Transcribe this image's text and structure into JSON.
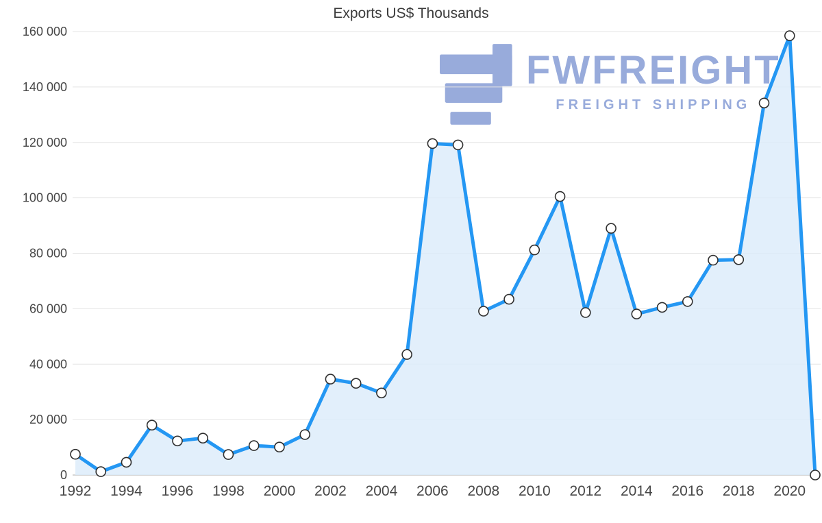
{
  "page": {
    "background": "#ffffff"
  },
  "chart_data": {
    "type": "area",
    "title": "Exports US$ Thousands",
    "series_name": "Exports US$ Thousands",
    "x": [
      1992,
      1993,
      1994,
      1995,
      1996,
      1997,
      1998,
      1999,
      2000,
      2001,
      2002,
      2003,
      2004,
      2005,
      2006,
      2007,
      2008,
      2009,
      2010,
      2011,
      2012,
      2013,
      2014,
      2015,
      2016,
      2017,
      2018,
      2019,
      2020,
      2021
    ],
    "values": [
      7500,
      1200,
      4600,
      18000,
      12300,
      13300,
      7400,
      10600,
      10100,
      14600,
      34600,
      33100,
      29600,
      43500,
      119600,
      119100,
      59100,
      63400,
      81200,
      100500,
      58600,
      89000,
      58100,
      60500,
      62600,
      77500,
      77700,
      134200,
      158500,
      0
    ],
    "ylim": [
      0,
      160000
    ],
    "ytick_step": 20000,
    "ytick_labels": [
      "0",
      "20 000",
      "40 000",
      "60 000",
      "80 000",
      "100 000",
      "120 000",
      "140 000",
      "160 000"
    ],
    "xtick_labels": [
      "1992",
      "1994",
      "1996",
      "1998",
      "2000",
      "2002",
      "2004",
      "2006",
      "2008",
      "2010",
      "2012",
      "2014",
      "2016",
      "2018",
      "2020"
    ],
    "grid": "horizontal",
    "legend": "none",
    "marker": "circle",
    "colors": {
      "line": "#2497f3",
      "area": "#dcecfa",
      "marker_fill": "#ffffff",
      "marker_stroke": "#2f2f2f",
      "grid": "#e4e4e4",
      "axis": "#c9c9c9",
      "tick_text": "#474747",
      "title_text": "#3c3c3c"
    }
  },
  "watermark": {
    "brand": "FWFREIGHT",
    "tagline": "FREIGHT SHIPPING",
    "color": "#93a7da"
  }
}
